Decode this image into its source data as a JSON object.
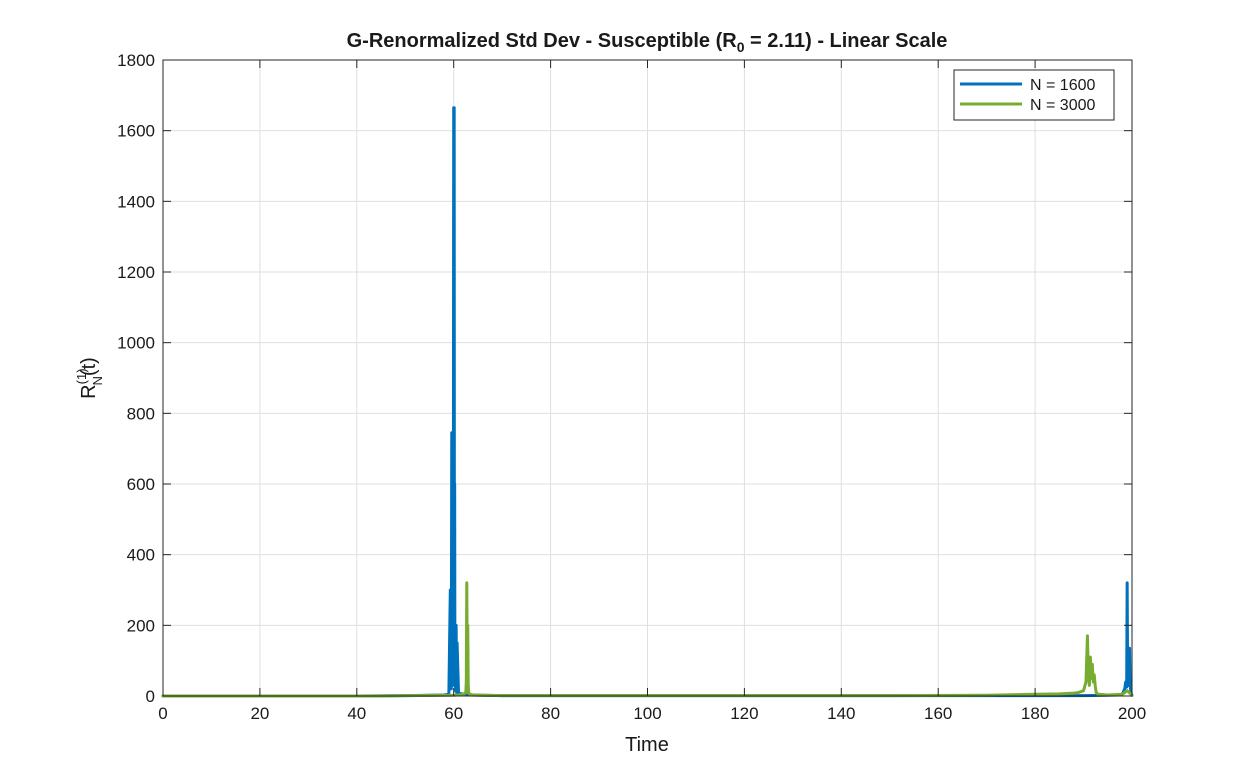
{
  "chart_data": {
    "type": "line",
    "title": "G-Renormalized  Std  Dev  -  Susceptible  (R",
    "title_sub": "0",
    "title_tail": "  =  2.11)  -  Linear  Scale",
    "xlabel": "Time",
    "ylabel_main": "R",
    "ylabel_sup": "(1)",
    "ylabel_sub": "N",
    "ylabel_tail": "(t)",
    "xlim": [
      0,
      200
    ],
    "ylim": [
      0,
      1800
    ],
    "xticks": [
      0,
      20,
      40,
      60,
      80,
      100,
      120,
      140,
      160,
      180,
      200
    ],
    "yticks": [
      0,
      200,
      400,
      600,
      800,
      1000,
      1200,
      1400,
      1600,
      1800
    ],
    "grid": true,
    "legend_position": "top-right",
    "series": [
      {
        "name": "N = 1600",
        "color": "#0072BD",
        "x": [
          0,
          20,
          40,
          50,
          55,
          58,
          59,
          59.3,
          59.5,
          59.6,
          59.7,
          59.8,
          59.9,
          60.0,
          60.05,
          60.1,
          60.15,
          60.2,
          60.25,
          60.3,
          60.4,
          60.5,
          60.6,
          60.7,
          61,
          62,
          63,
          70,
          100,
          150,
          170,
          180,
          190,
          195,
          197,
          198,
          198.5,
          198.7,
          198.9,
          199.0,
          199.1,
          199.2,
          199.3,
          199.4,
          199.5,
          199.6,
          199.7,
          199.8,
          199.9,
          200
        ],
        "values": [
          0,
          0,
          0,
          1,
          2,
          3,
          5,
          300,
          20,
          745,
          30,
          700,
          40,
          1665,
          50,
          1665,
          30,
          600,
          40,
          200,
          15,
          200,
          10,
          150,
          8,
          5,
          3,
          1,
          1,
          1,
          1,
          1,
          1,
          2,
          3,
          5,
          20,
          40,
          25,
          320,
          60,
          30,
          135,
          50,
          135,
          30,
          20,
          10,
          5,
          2
        ]
      },
      {
        "name": "N = 3000",
        "color": "#77AC30",
        "x": [
          0,
          20,
          40,
          50,
          60,
          61,
          62,
          62.5,
          62.6,
          62.7,
          62.8,
          62.9,
          63.0,
          63.1,
          63.3,
          64,
          70,
          100,
          150,
          170,
          180,
          185,
          188,
          189,
          190,
          190.5,
          190.8,
          191.0,
          191.2,
          191.4,
          191.6,
          191.8,
          192.0,
          192.2,
          192.4,
          192.6,
          193,
          195,
          198,
          199,
          200
        ],
        "values": [
          0,
          0,
          0,
          1,
          2,
          3,
          5,
          10,
          40,
          320,
          60,
          200,
          30,
          10,
          5,
          3,
          1,
          1,
          1,
          2,
          5,
          6,
          8,
          10,
          15,
          40,
          170,
          60,
          30,
          110,
          50,
          90,
          40,
          60,
          30,
          10,
          5,
          3,
          5,
          15,
          2
        ]
      }
    ]
  }
}
